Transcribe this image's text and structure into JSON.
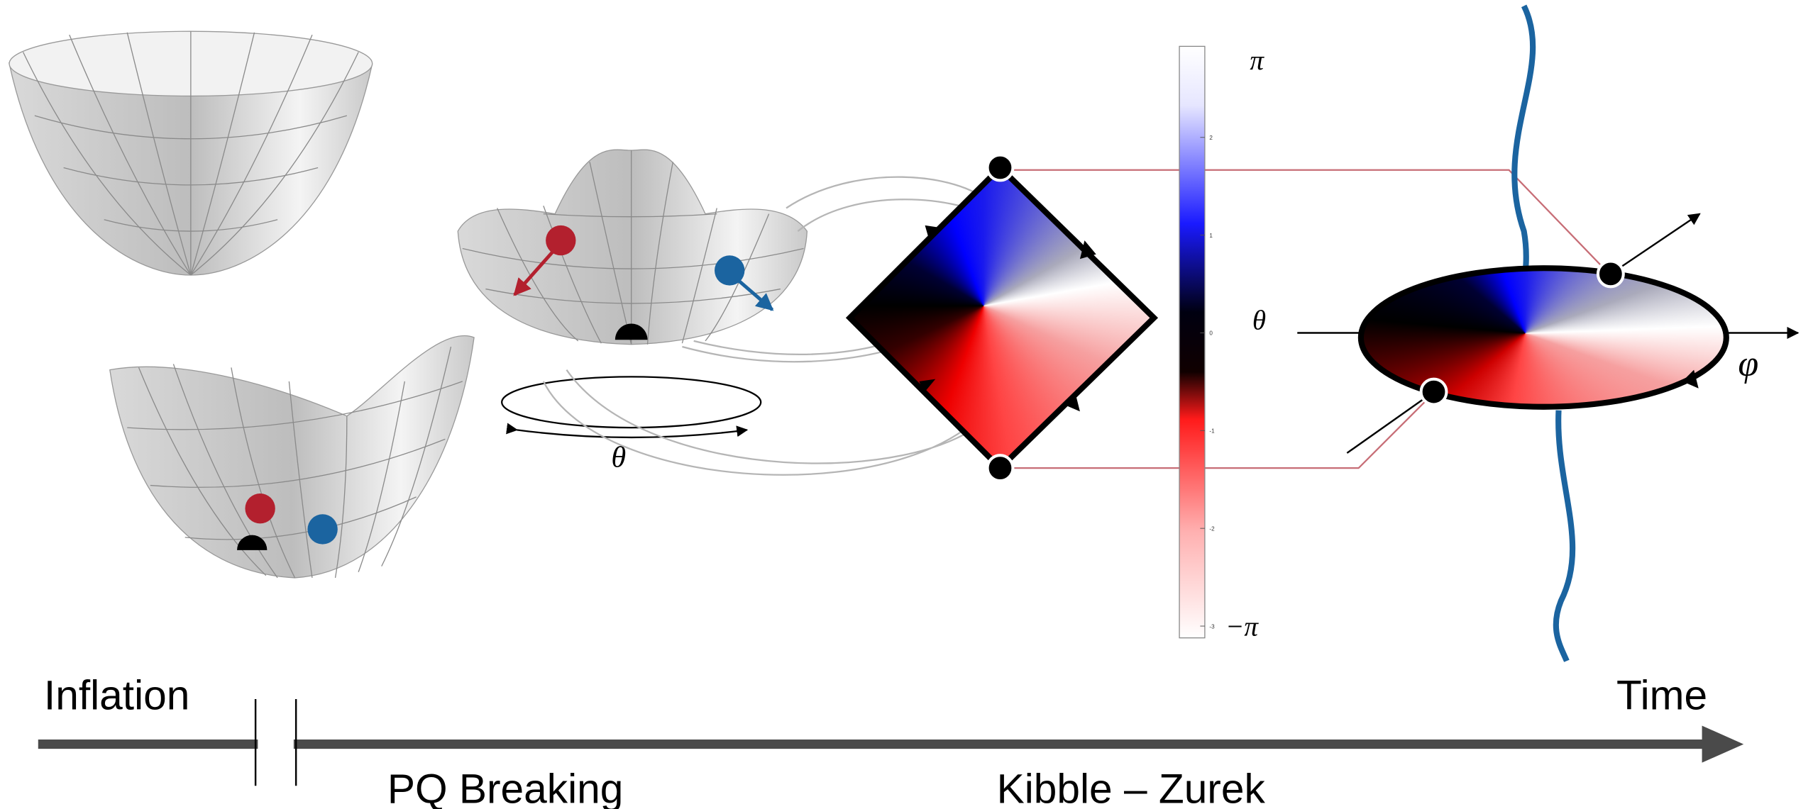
{
  "timeline": {
    "start": "Inflation",
    "end": "Time",
    "phase1": "PQ Breaking",
    "phase2": "Kibble – Zurek"
  },
  "potential": {
    "angle_label": "θ"
  },
  "colorbar": {
    "top_label": "π",
    "axis_label": "θ",
    "bottom_label": "−π",
    "ticks": [
      2,
      1,
      0,
      -1,
      -2,
      -3
    ]
  },
  "string": {
    "field_label": "φ"
  }
}
